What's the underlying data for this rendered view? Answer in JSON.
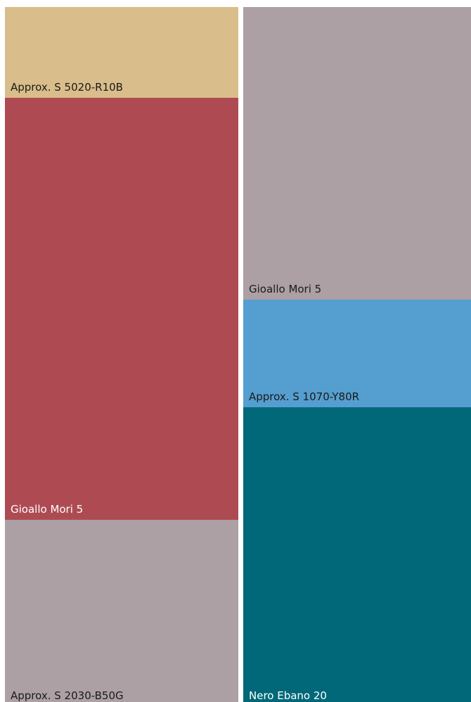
{
  "swatches": [
    {
      "id": "sw-l1",
      "label": "Approx. S 5020-R10B",
      "color": "#d9bd8a",
      "text_color": "#1a1a1a"
    },
    {
      "id": "sw-l2",
      "label": "Gioallo Mori 5",
      "color": "#ae4b52",
      "text_color": "#ffffff"
    },
    {
      "id": "sw-l3",
      "label": "Approx. S 2030-B50G",
      "color": "#aca0a4",
      "text_color": "#1a1a1a"
    },
    {
      "id": "sw-r1",
      "label": "Gioallo Mori 5",
      "color": "#aca0a4",
      "text_color": "#1a1a1a"
    },
    {
      "id": "sw-r2",
      "label": "Approx. S 1070-Y80R",
      "color": "#559ed0",
      "text_color": "#1a1a1a"
    },
    {
      "id": "sw-r3",
      "label": "Nero Ebano 20",
      "color": "#006878",
      "text_color": "#ffffff"
    }
  ]
}
